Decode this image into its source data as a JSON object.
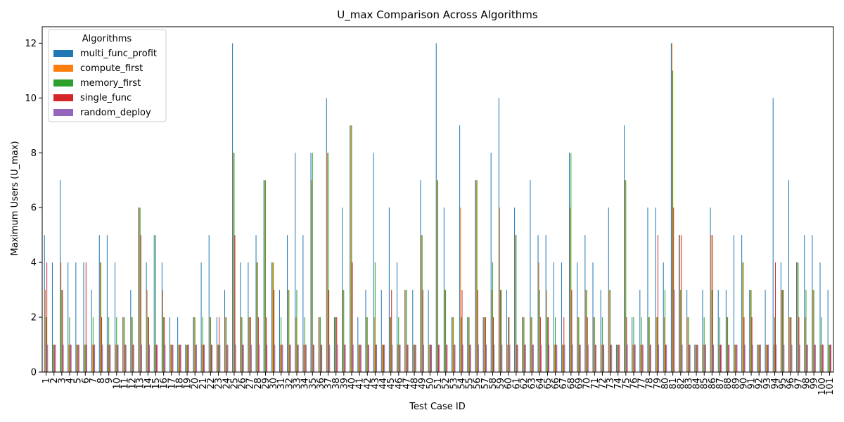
{
  "chart_data": {
    "type": "bar",
    "title": "U_max Comparison Across Algorithms",
    "xlabel": "Test Case ID",
    "ylabel": "Maximum Users (U_max)",
    "ylim": [
      0,
      12.6
    ],
    "yticks": [
      0,
      2,
      4,
      6,
      8,
      10,
      12
    ],
    "grid": false,
    "legend": {
      "title": "Algorithms",
      "placement": "top-left"
    },
    "categories": [
      "1",
      "2",
      "3",
      "4",
      "5",
      "6",
      "7",
      "8",
      "9",
      "10",
      "11",
      "12",
      "13",
      "14",
      "15",
      "16",
      "17",
      "18",
      "19",
      "20",
      "21",
      "22",
      "23",
      "24",
      "25",
      "26",
      "27",
      "28",
      "29",
      "30",
      "31",
      "32",
      "33",
      "34",
      "35",
      "36",
      "37",
      "38",
      "39",
      "40",
      "41",
      "42",
      "43",
      "44",
      "45",
      "46",
      "47",
      "48",
      "49",
      "50",
      "51",
      "52",
      "53",
      "54",
      "55",
      "56",
      "57",
      "58",
      "59",
      "60",
      "61",
      "62",
      "63",
      "64",
      "65",
      "66",
      "67",
      "68",
      "69",
      "70",
      "71",
      "72",
      "73",
      "74",
      "75",
      "76",
      "77",
      "78",
      "79",
      "80",
      "81",
      "82",
      "83",
      "84",
      "85",
      "86",
      "87",
      "88",
      "89",
      "90",
      "91",
      "92",
      "93",
      "94",
      "95",
      "96",
      "97",
      "98",
      "99",
      "100",
      "101"
    ],
    "series": [
      {
        "name": "multi_func_profit",
        "color": "#1f77b4",
        "values": [
          5,
          4,
          7,
          4,
          4,
          4,
          3,
          5,
          5,
          4,
          2,
          3,
          6,
          4,
          5,
          4,
          2,
          2,
          1,
          2,
          4,
          5,
          2,
          3,
          12,
          4,
          4,
          5,
          7,
          4,
          3,
          5,
          8,
          5,
          8,
          2,
          10,
          2,
          6,
          9,
          2,
          3,
          8,
          3,
          6,
          4,
          3,
          3,
          7,
          3,
          12,
          6,
          2,
          9,
          2,
          7,
          2,
          8,
          10,
          3,
          6,
          2,
          7,
          5,
          5,
          4,
          4,
          8,
          4,
          5,
          4,
          3,
          6,
          1,
          9,
          2,
          3,
          6,
          6,
          4,
          12,
          5,
          3,
          1,
          3,
          6,
          3,
          3,
          5,
          5,
          3,
          1,
          3,
          10,
          4,
          7,
          4,
          5,
          5,
          4,
          3
        ]
      },
      {
        "name": "compute_first",
        "color": "#ff7f0e",
        "values": [
          3,
          1,
          4,
          1,
          1,
          1,
          1,
          4,
          1,
          1,
          2,
          2,
          6,
          3,
          1,
          3,
          1,
          1,
          1,
          2,
          1,
          2,
          1,
          2,
          8,
          2,
          2,
          4,
          7,
          4,
          1,
          3,
          2,
          1,
          7,
          2,
          8,
          2,
          3,
          9,
          1,
          2,
          2,
          1,
          2,
          1,
          3,
          1,
          5,
          1,
          7,
          3,
          2,
          6,
          2,
          7,
          2,
          3,
          6,
          1,
          5,
          2,
          2,
          4,
          3,
          1,
          1,
          6,
          2,
          3,
          2,
          1,
          3,
          1,
          7,
          1,
          1,
          2,
          2,
          2,
          12,
          5,
          2,
          1,
          1,
          5,
          1,
          2,
          1,
          4,
          3,
          1,
          1,
          1,
          3,
          2,
          4,
          2,
          3,
          1,
          1
        ]
      },
      {
        "name": "memory_first",
        "color": "#2ca02c",
        "values": [
          2,
          1,
          3,
          2,
          1,
          1,
          2,
          4,
          2,
          2,
          2,
          2,
          6,
          2,
          5,
          2,
          1,
          1,
          1,
          2,
          2,
          2,
          1,
          2,
          8,
          2,
          2,
          4,
          7,
          4,
          2,
          3,
          3,
          2,
          8,
          2,
          8,
          2,
          3,
          9,
          1,
          2,
          4,
          1,
          2,
          2,
          3,
          1,
          5,
          1,
          7,
          3,
          2,
          2,
          2,
          7,
          2,
          4,
          3,
          2,
          5,
          2,
          2,
          3,
          2,
          2,
          1,
          8,
          2,
          3,
          2,
          2,
          3,
          1,
          7,
          2,
          2,
          2,
          2,
          3,
          11,
          3,
          2,
          1,
          2,
          3,
          2,
          2,
          1,
          4,
          3,
          1,
          1,
          2,
          3,
          2,
          4,
          3,
          3,
          2,
          1
        ]
      },
      {
        "name": "single_func",
        "color": "#d62728",
        "values": [
          4,
          1,
          3,
          1,
          1,
          4,
          1,
          2,
          1,
          1,
          1,
          1,
          5,
          2,
          1,
          2,
          1,
          1,
          1,
          1,
          1,
          1,
          2,
          1,
          5,
          1,
          2,
          2,
          2,
          3,
          1,
          1,
          1,
          1,
          1,
          1,
          3,
          2,
          1,
          4,
          1,
          1,
          1,
          1,
          3,
          1,
          1,
          1,
          3,
          1,
          1,
          1,
          1,
          3,
          1,
          3,
          2,
          2,
          3,
          2,
          1,
          1,
          1,
          2,
          2,
          1,
          2,
          3,
          1,
          2,
          1,
          1,
          1,
          1,
          2,
          1,
          1,
          1,
          5,
          1,
          6,
          5,
          1,
          1,
          1,
          5,
          1,
          1,
          1,
          2,
          2,
          1,
          1,
          4,
          3,
          2,
          2,
          1,
          1,
          1,
          1
        ]
      },
      {
        "name": "random_deploy",
        "color": "#9467bd",
        "values": [
          1,
          1,
          1,
          1,
          1,
          1,
          1,
          1,
          1,
          1,
          1,
          1,
          1,
          1,
          1,
          1,
          1,
          1,
          1,
          1,
          1,
          1,
          1,
          1,
          1,
          1,
          1,
          1,
          1,
          1,
          1,
          1,
          1,
          1,
          1,
          1,
          1,
          1,
          1,
          1,
          1,
          1,
          1,
          1,
          1,
          1,
          1,
          1,
          1,
          1,
          1,
          1,
          1,
          1,
          1,
          1,
          1,
          1,
          1,
          1,
          1,
          1,
          1,
          1,
          1,
          1,
          1,
          1,
          1,
          1,
          1,
          1,
          1,
          1,
          1,
          1,
          1,
          1,
          1,
          1,
          3,
          1,
          1,
          1,
          1,
          1,
          1,
          1,
          1,
          1,
          1,
          1,
          1,
          1,
          1,
          1,
          1,
          1,
          1,
          1,
          1
        ]
      }
    ]
  }
}
